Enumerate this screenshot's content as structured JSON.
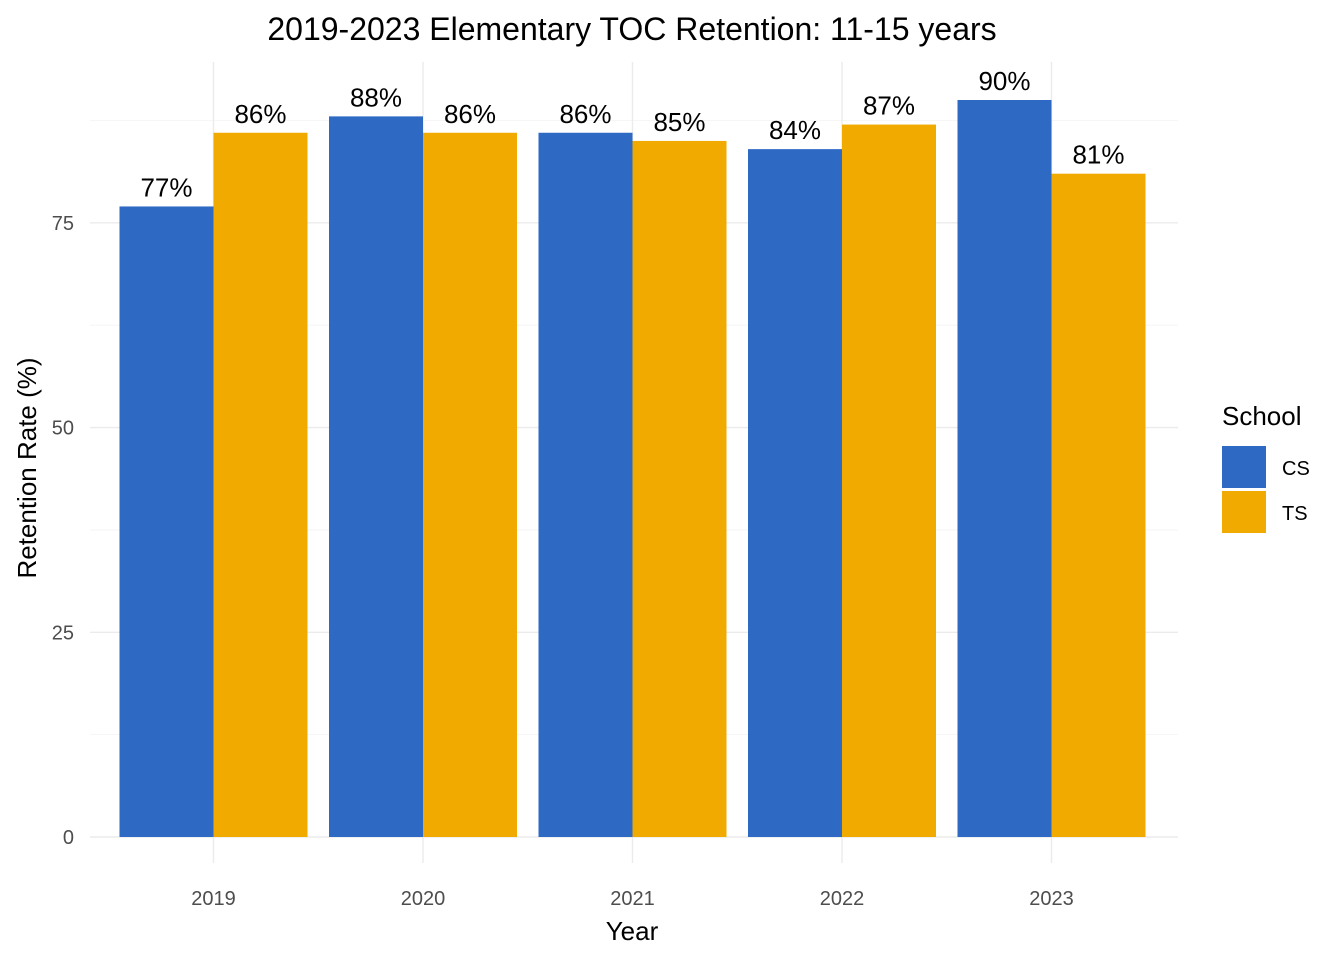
{
  "chart_data": {
    "type": "bar",
    "title": "2019-2023 Elementary TOC Retention: 11-15 years",
    "xlabel": "Year",
    "ylabel": "Retention Rate (%)",
    "categories": [
      "2019",
      "2020",
      "2021",
      "2022",
      "2023"
    ],
    "series": [
      {
        "name": "CS",
        "color": "#2e69c4",
        "values": [
          77,
          88,
          86,
          84,
          90
        ],
        "labels": [
          "77%",
          "88%",
          "86%",
          "84%",
          "90%"
        ]
      },
      {
        "name": "TS",
        "color": "#f0aa00",
        "values": [
          86,
          86,
          85,
          87,
          81
        ],
        "labels": [
          "86%",
          "86%",
          "85%",
          "87%",
          "81%"
        ]
      }
    ],
    "ylim": [
      0,
      90
    ],
    "yticks": [
      0,
      25,
      50,
      75
    ],
    "ytick_labels": [
      "0",
      "25",
      "50",
      "75"
    ],
    "grid": true,
    "legend": {
      "title": "School",
      "placement": "right"
    }
  }
}
